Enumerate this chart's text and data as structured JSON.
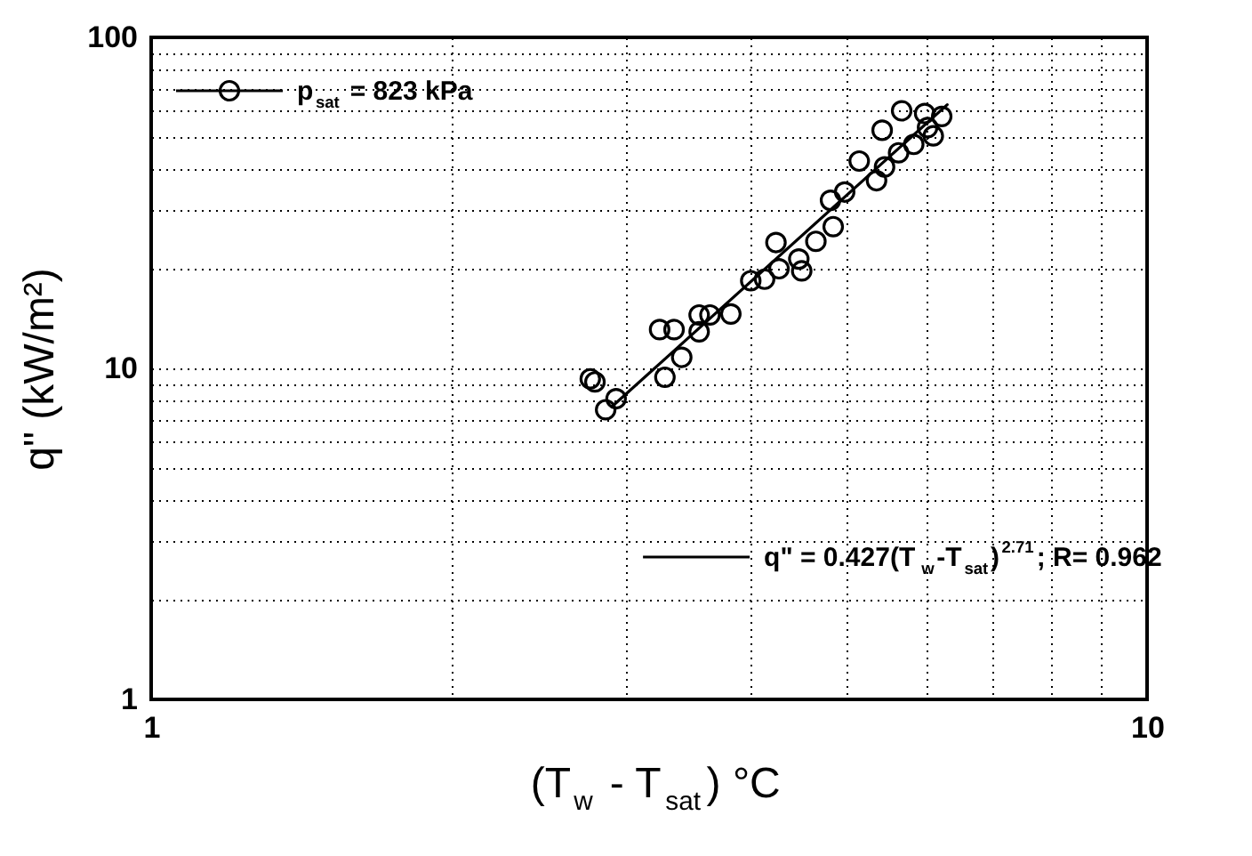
{
  "chart_data": {
    "type": "scatter",
    "xlabel": "(T$_{w}$ - T$_{sat}$) °C",
    "ylabel": "q\" (kW/m²)",
    "log": "xy",
    "grid": true,
    "legend": "top left",
    "marker": "circle",
    "xlim": [
      1,
      10
    ],
    "ylim": [
      1,
      100
    ],
    "xticks": [
      1,
      {
        "value": 2,
        "label": null
      },
      {
        "value": 3,
        "label": null
      },
      {
        "value": 4,
        "label": null
      },
      {
        "value": 5,
        "label": null
      },
      {
        "value": 6,
        "label": null
      },
      {
        "value": 7,
        "label": null
      },
      {
        "value": 8,
        "label": null
      },
      {
        "value": 9,
        "label": null
      },
      10
    ],
    "yticks": [
      1,
      {
        "value": 2,
        "label": null
      },
      {
        "value": 3,
        "label": null
      },
      {
        "value": 4,
        "label": null
      },
      {
        "value": 5,
        "label": null
      },
      {
        "value": 6,
        "label": null
      },
      {
        "value": 7,
        "label": null
      },
      {
        "value": 8,
        "label": null
      },
      {
        "value": 9,
        "label": null
      },
      10,
      {
        "value": 20,
        "label": null
      },
      {
        "value": 30,
        "label": null
      },
      {
        "value": 40,
        "label": null
      },
      {
        "value": 50,
        "label": null
      },
      {
        "value": 60,
        "label": null
      },
      {
        "value": 70,
        "label": null
      },
      {
        "value": 80,
        "label": null
      },
      {
        "value": 90,
        "label": null
      },
      100
    ],
    "series": [
      {
        "name": "p$_{sat}$ = 823 kPa",
        "color": "#000000",
        "x": [
          2.76,
          2.79,
          2.86,
          2.93,
          3.28,
          3.41,
          3.24,
          3.35,
          3.55,
          3.55,
          3.64,
          3.82,
          4.0,
          4.13,
          4.24,
          4.27,
          4.47,
          4.5,
          4.65,
          4.84,
          4.81,
          4.97,
          5.14,
          5.35,
          5.42,
          5.45,
          5.63,
          5.67,
          5.83,
          6.02,
          6.1,
          6.22,
          5.98
        ],
        "values": [
          9.3,
          9.1,
          7.5,
          8.1,
          9.4,
          10.8,
          13.1,
          13.1,
          12.9,
          14.5,
          14.5,
          14.6,
          18.4,
          18.6,
          24,
          20,
          21.4,
          19.7,
          24.2,
          26.8,
          32.2,
          34.1,
          42.3,
          36.9,
          52.4,
          40.6,
          44.8,
          60,
          47.5,
          53.4,
          50.4,
          57.7,
          58.9
        ]
      },
      {
        "name": "q\" = 0.427(T$_{w}$-T$_{sat}$)$^{2.71}$; R= 0.962",
        "type": "line",
        "line_style": "solid",
        "marker": "none",
        "color": "#000000",
        "x": [
          2.9,
          6.3
        ],
        "values": [
          7.65,
          62.6
        ]
      }
    ]
  }
}
